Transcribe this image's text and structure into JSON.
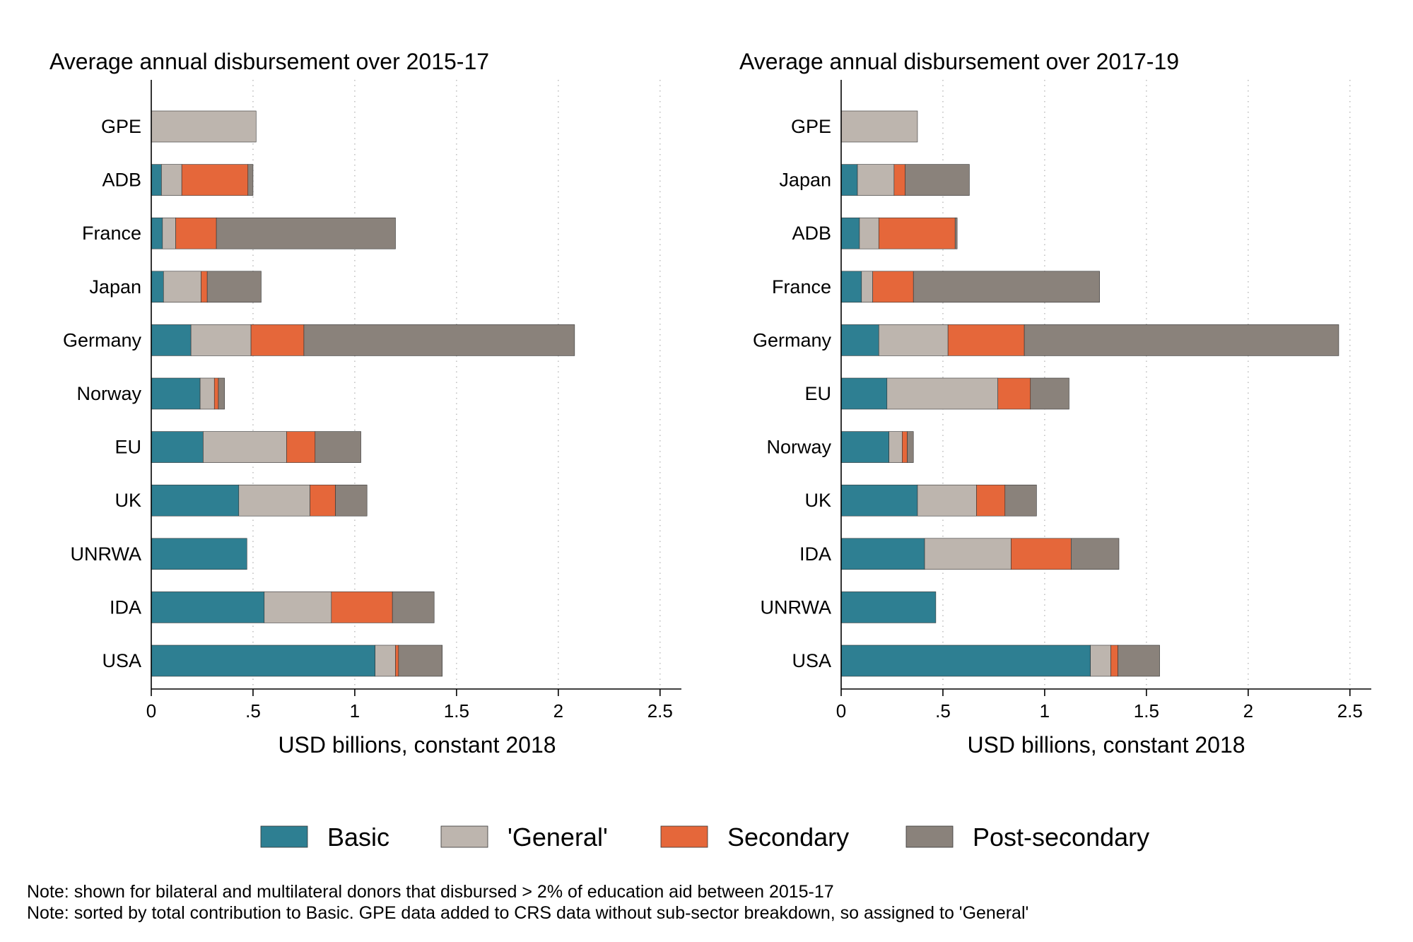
{
  "colors": {
    "Basic": "#2e7f92",
    "General": "#bdb5ae",
    "Secondary": "#e5673a",
    "Post-secondary": "#8a827b"
  },
  "legend": [
    {
      "key": "Basic",
      "label": "Basic"
    },
    {
      "key": "General",
      "label": "'General'"
    },
    {
      "key": "Secondary",
      "label": "Secondary"
    },
    {
      "key": "Post-secondary",
      "label": "Post-secondary"
    }
  ],
  "notes": [
    "Note: shown for bilateral and multilateral donors that disbursed > 2% of education aid between 2015-17",
    "Note: sorted by total contribution to Basic. GPE data added to CRS data without sub-sector breakdown, so assigned to 'General'"
  ],
  "chart_data": [
    {
      "type": "bar",
      "orientation": "horizontal",
      "stacked": true,
      "title": "Average annual disbursement over 2015-17",
      "xlabel": "USD billions, constant 2018",
      "ylabel": "",
      "xlim": [
        0,
        2.5
      ],
      "xticks": [
        0,
        0.5,
        1,
        1.5,
        2,
        2.5
      ],
      "xtick_labels": [
        "0",
        ".5",
        "1",
        "1.5",
        "2",
        "2.5"
      ],
      "grid": "vertical dotted",
      "categories": [
        "GPE",
        "ADB",
        "France",
        "Japan",
        "Germany",
        "Norway",
        "EU",
        "UK",
        "UNRWA",
        "IDA",
        "USA"
      ],
      "series": [
        {
          "name": "Basic",
          "values": [
            0,
            0.05,
            0.055,
            0.06,
            0.195,
            0.24,
            0.255,
            0.43,
            0.47,
            0.555,
            1.1
          ]
        },
        {
          "name": "'General'",
          "values": [
            0.515,
            0.1,
            0.065,
            0.185,
            0.295,
            0.07,
            0.41,
            0.35,
            0,
            0.33,
            0.1
          ]
        },
        {
          "name": "Secondary",
          "values": [
            0,
            0.325,
            0.2,
            0.03,
            0.26,
            0.02,
            0.14,
            0.125,
            0,
            0.3,
            0.015
          ]
        },
        {
          "name": "Post-secondary",
          "values": [
            0,
            0.025,
            0.88,
            0.265,
            1.33,
            0.03,
            0.225,
            0.155,
            0,
            0.205,
            0.215
          ]
        }
      ]
    },
    {
      "type": "bar",
      "orientation": "horizontal",
      "stacked": true,
      "title": "Average annual disbursement over 2017-19",
      "xlabel": "USD billions, constant 2018",
      "ylabel": "",
      "xlim": [
        0,
        2.5
      ],
      "xticks": [
        0,
        0.5,
        1,
        1.5,
        2,
        2.5
      ],
      "xtick_labels": [
        "0",
        ".5",
        "1",
        "1.5",
        "2",
        "2.5"
      ],
      "grid": "vertical dotted",
      "categories": [
        "GPE",
        "Japan",
        "ADB",
        "France",
        "Germany",
        "EU",
        "Norway",
        "UK",
        "IDA",
        "UNRWA",
        "USA"
      ],
      "series": [
        {
          "name": "Basic",
          "values": [
            0,
            0.08,
            0.09,
            0.1,
            0.185,
            0.225,
            0.235,
            0.375,
            0.41,
            0.465,
            1.225
          ]
        },
        {
          "name": "'General'",
          "values": [
            0.375,
            0.18,
            0.095,
            0.055,
            0.34,
            0.545,
            0.065,
            0.29,
            0.425,
            0,
            0.1
          ]
        },
        {
          "name": "Secondary",
          "values": [
            0,
            0.055,
            0.375,
            0.2,
            0.375,
            0.16,
            0.025,
            0.14,
            0.295,
            0,
            0.035
          ]
        },
        {
          "name": "Post-secondary",
          "values": [
            0,
            0.315,
            0.01,
            0.915,
            1.545,
            0.19,
            0.03,
            0.155,
            0.235,
            0,
            0.205
          ]
        }
      ]
    }
  ]
}
